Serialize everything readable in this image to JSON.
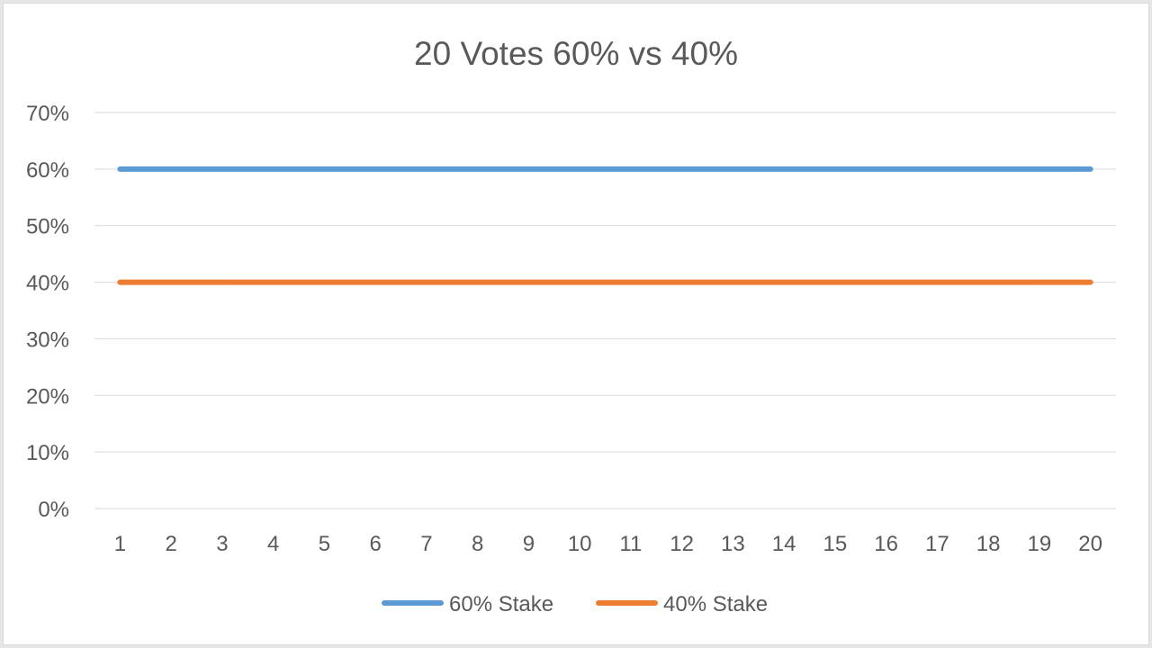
{
  "chart_data": {
    "type": "line",
    "title": "20 Votes 60% vs 40%",
    "xlabel": "",
    "ylabel": "",
    "categories": [
      "1",
      "2",
      "3",
      "4",
      "5",
      "6",
      "7",
      "8",
      "9",
      "10",
      "11",
      "12",
      "13",
      "14",
      "15",
      "16",
      "17",
      "18",
      "19",
      "20"
    ],
    "y_ticks": [
      "0%",
      "10%",
      "20%",
      "30%",
      "40%",
      "50%",
      "60%",
      "70%"
    ],
    "ylim": [
      0,
      0.7
    ],
    "grid": true,
    "legend_position": "bottom",
    "series": [
      {
        "name": "60% Stake",
        "color": "#5b9bd5",
        "values": [
          0.6,
          0.6,
          0.6,
          0.6,
          0.6,
          0.6,
          0.6,
          0.6,
          0.6,
          0.6,
          0.6,
          0.6,
          0.6,
          0.6,
          0.6,
          0.6,
          0.6,
          0.6,
          0.6,
          0.6
        ]
      },
      {
        "name": "40% Stake",
        "color": "#ed7d31",
        "values": [
          0.4,
          0.4,
          0.4,
          0.4,
          0.4,
          0.4,
          0.4,
          0.4,
          0.4,
          0.4,
          0.4,
          0.4,
          0.4,
          0.4,
          0.4,
          0.4,
          0.4,
          0.4,
          0.4,
          0.4
        ]
      }
    ]
  }
}
